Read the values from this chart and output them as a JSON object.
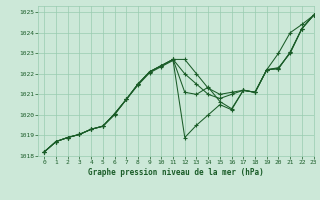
{
  "title": "Graphe pression niveau de la mer (hPa)",
  "bg_color": "#cce8d8",
  "grid_color": "#99ccb0",
  "line_color": "#1a5c28",
  "xlim": [
    -0.5,
    23
  ],
  "ylim": [
    1018,
    1025.3
  ],
  "xticks": [
    0,
    1,
    2,
    3,
    4,
    5,
    6,
    7,
    8,
    9,
    10,
    11,
    12,
    13,
    14,
    15,
    16,
    17,
    18,
    19,
    20,
    21,
    22,
    23
  ],
  "yticks": [
    1018,
    1019,
    1020,
    1021,
    1022,
    1023,
    1024,
    1025
  ],
  "series": [
    {
      "x": [
        0,
        1,
        2,
        3,
        4,
        5,
        6,
        7,
        8,
        9,
        10,
        11,
        12,
        13,
        14,
        15,
        16,
        17,
        18,
        19,
        20,
        21,
        22,
        23
      ],
      "y": [
        1018.2,
        1018.7,
        1018.9,
        1019.05,
        1019.3,
        1019.45,
        1020.05,
        1020.75,
        1021.5,
        1022.1,
        1022.4,
        1022.7,
        1022.7,
        1022.0,
        1021.3,
        1021.0,
        1021.1,
        1021.2,
        1021.1,
        1022.2,
        1023.0,
        1024.0,
        1024.4,
        1024.85
      ]
    },
    {
      "x": [
        0,
        1,
        2,
        3,
        4,
        5,
        6,
        7,
        8,
        9,
        10,
        11,
        12,
        13,
        14,
        15,
        16,
        17,
        18,
        19,
        20,
        21,
        22,
        23
      ],
      "y": [
        1018.2,
        1018.7,
        1018.9,
        1019.05,
        1019.3,
        1019.45,
        1020.05,
        1020.75,
        1021.5,
        1022.1,
        1022.4,
        1022.7,
        1022.0,
        1021.5,
        1021.0,
        1020.8,
        1021.0,
        1021.2,
        1021.1,
        1022.2,
        1022.3,
        1023.0,
        1024.2,
        1024.85
      ]
    },
    {
      "x": [
        0,
        1,
        2,
        3,
        4,
        5,
        6,
        7,
        8,
        9,
        10,
        11,
        12,
        13,
        14,
        15,
        16,
        17,
        18,
        19,
        20,
        21,
        22,
        23
      ],
      "y": [
        1018.2,
        1018.7,
        1018.9,
        1019.05,
        1019.3,
        1019.45,
        1020.05,
        1020.75,
        1021.5,
        1022.1,
        1022.4,
        1022.7,
        1021.1,
        1021.0,
        1021.35,
        1020.65,
        1020.3,
        1021.2,
        1021.1,
        1022.2,
        1022.25,
        1023.05,
        1024.2,
        1024.85
      ]
    },
    {
      "x": [
        0,
        1,
        2,
        3,
        4,
        5,
        6,
        7,
        8,
        9,
        10,
        11,
        12,
        13,
        14,
        15,
        16,
        17,
        18,
        19,
        20,
        21,
        22,
        23
      ],
      "y": [
        1018.2,
        1018.7,
        1018.9,
        1019.05,
        1019.3,
        1019.45,
        1020.0,
        1020.75,
        1021.45,
        1022.05,
        1022.35,
        1022.65,
        1018.9,
        1019.5,
        1020.0,
        1020.5,
        1020.25,
        1021.2,
        1021.1,
        1022.2,
        1022.25,
        1023.05,
        1024.2,
        1024.85
      ]
    }
  ]
}
